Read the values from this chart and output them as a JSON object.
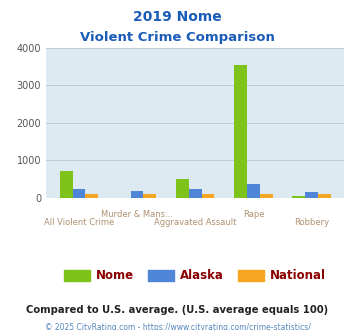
{
  "title_line1": "2019 Nome",
  "title_line2": "Violent Crime Comparison",
  "categories": [
    "All Violent Crime",
    "Murder & Mans...",
    "Aggravated Assault",
    "Rape",
    "Robbery"
  ],
  "nome_values": [
    730,
    0,
    500,
    3550,
    55
  ],
  "alaska_values": [
    250,
    190,
    250,
    370,
    155
  ],
  "national_values": [
    100,
    100,
    100,
    100,
    100
  ],
  "nome_color": "#7dc31a",
  "alaska_color": "#4f86d8",
  "national_color": "#f5a623",
  "bg_color": "#deeaf1",
  "ylim": [
    0,
    4000
  ],
  "yticks": [
    0,
    1000,
    2000,
    3000,
    4000
  ],
  "footer_text": "Compared to U.S. average. (U.S. average equals 100)",
  "credit_text": "© 2025 CityRating.com - https://www.cityrating.com/crime-statistics/",
  "title_color": "#1a5cb8",
  "label_color": "#b09070",
  "legend_text_color": "#8b0000",
  "footer_color": "#222222",
  "credit_color": "#5588bb",
  "grid_color": "#b8cdd8",
  "bar_width": 0.22
}
